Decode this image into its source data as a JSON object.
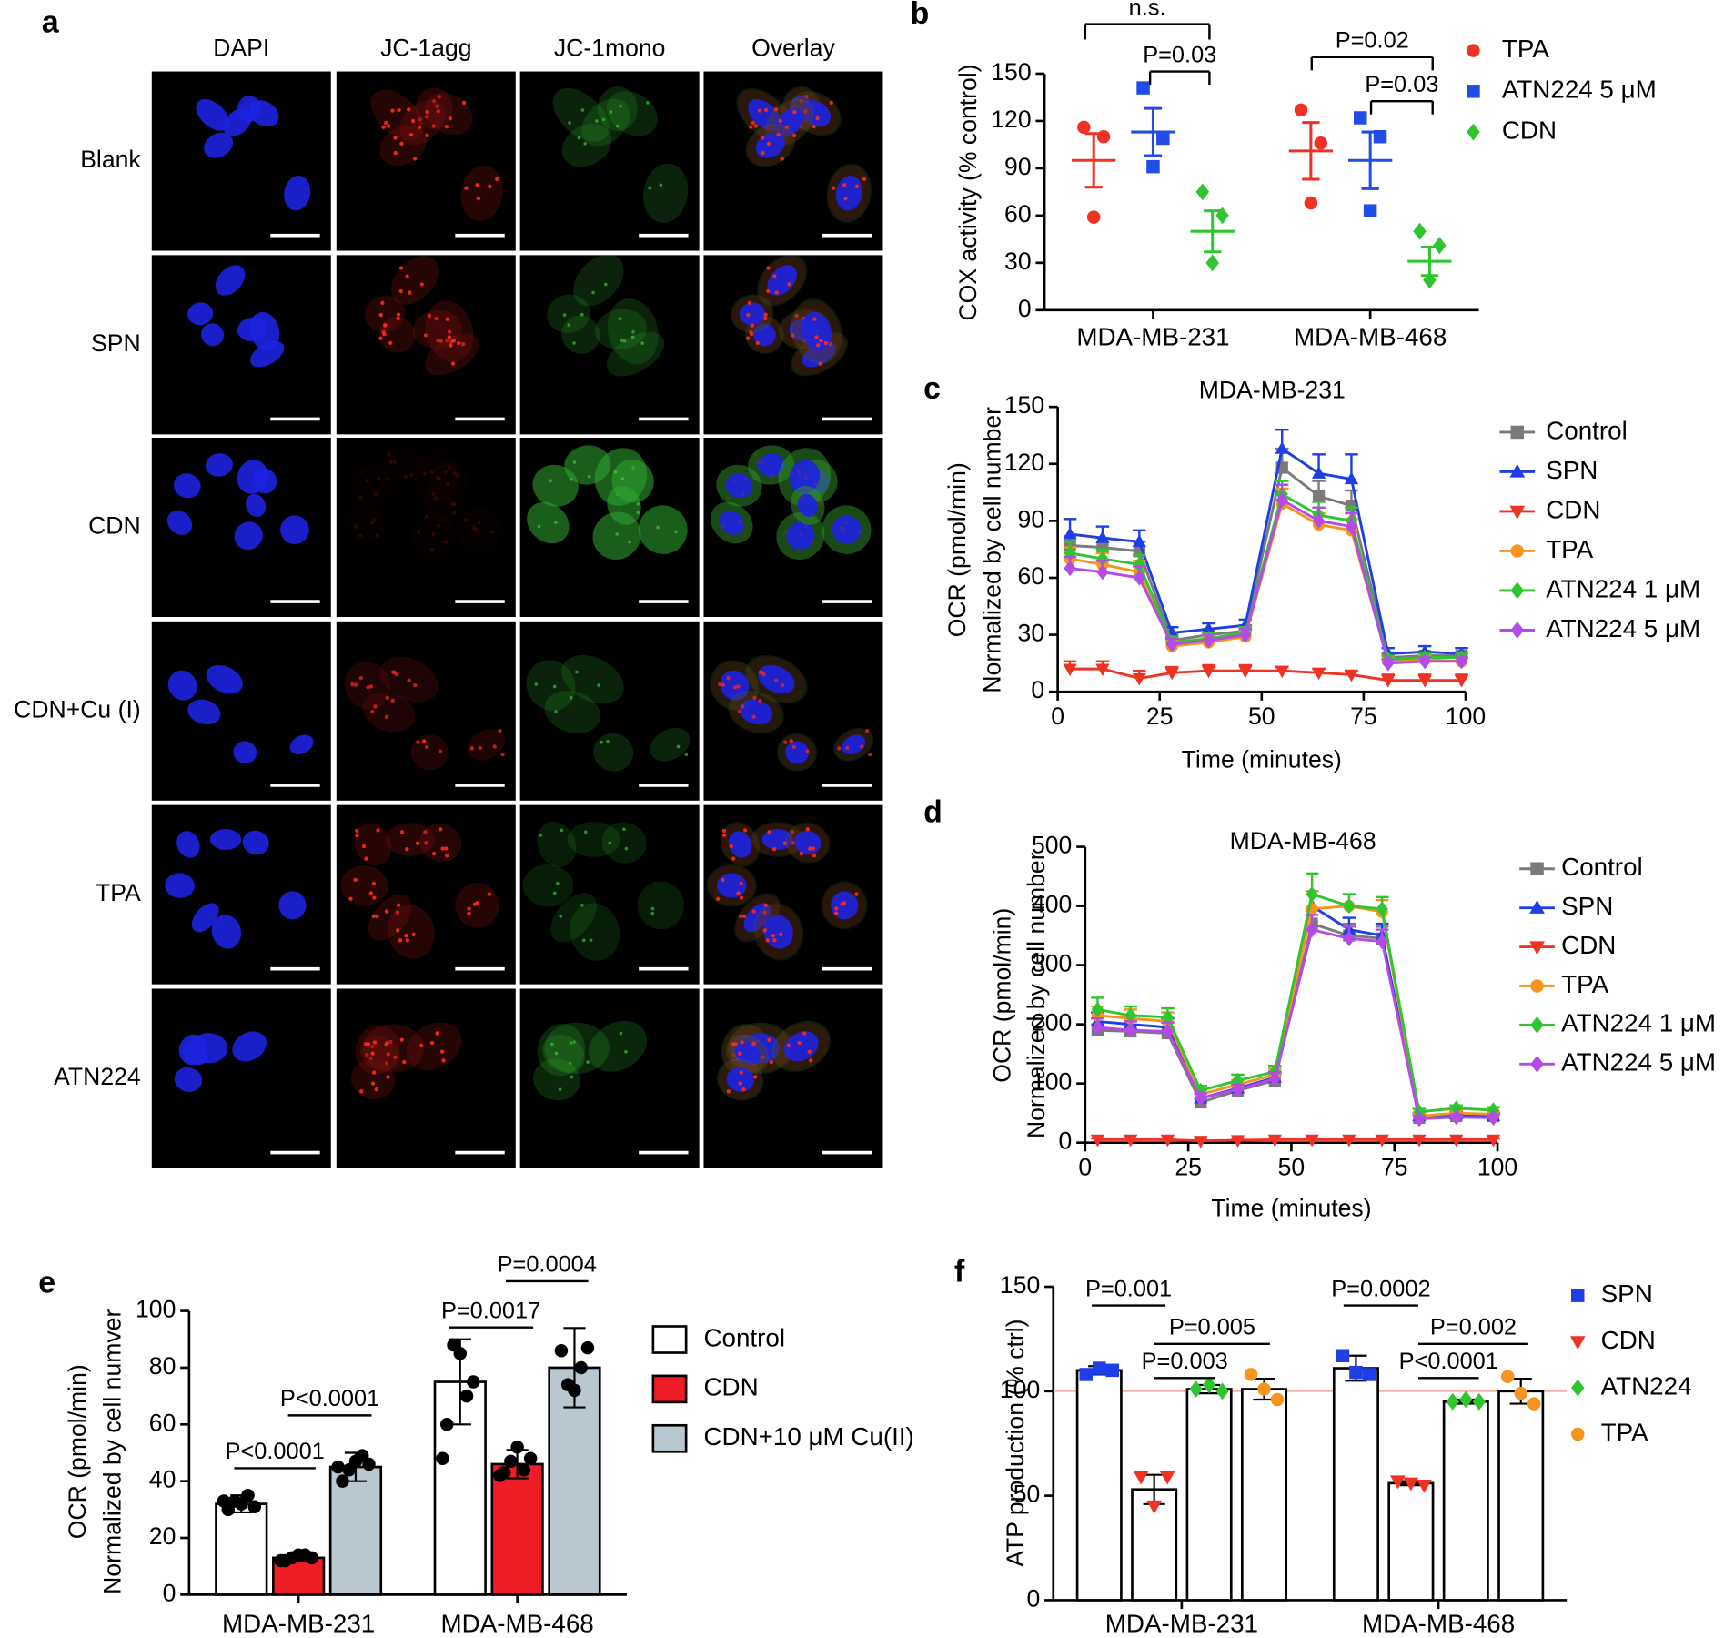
{
  "panel_a": {
    "label": "a",
    "columns": [
      "DAPI",
      "JC-1agg",
      "JC-1mono",
      "Overlay"
    ],
    "rows": [
      "Blank",
      "SPN",
      "CDN",
      "CDN+Cu (I)",
      "TPA",
      "ATN224"
    ]
  },
  "chart_data": [
    {
      "type": "dot_plot",
      "label": "b",
      "ylabel": "COX activity (% control)",
      "categories": [
        "MDA-MB-231",
        "MDA-MB-468"
      ],
      "ylim": [
        0,
        150
      ],
      "yticks": [
        0,
        30,
        60,
        90,
        120,
        150
      ],
      "series": [
        {
          "name": "TPA",
          "color": "#ee3324",
          "marker": "circle",
          "values": [
            [
              116,
              110,
              59
            ],
            [
              127,
              106,
              68
            ]
          ],
          "means": [
            95,
            101
          ],
          "errors": [
            17,
            18
          ]
        },
        {
          "name": "ATN224 5 μM",
          "color": "#1f4de6",
          "marker": "square",
          "values": [
            [
              141,
              109,
              91
            ],
            [
              122,
              110,
              63
            ]
          ],
          "means": [
            113,
            95
          ],
          "errors": [
            15,
            18
          ]
        },
        {
          "name": "CDN",
          "color": "#2fc52f",
          "marker": "diamond",
          "values": [
            [
              75,
              60,
              30
            ],
            [
              50,
              41,
              19
            ]
          ],
          "means": [
            50,
            31
          ],
          "errors": [
            13,
            9
          ]
        }
      ],
      "annotations": [
        "n.s.",
        "P=0.03",
        "P=0.02",
        "P=0.03"
      ]
    },
    {
      "type": "line",
      "label": "c",
      "title": "MDA-MB-231",
      "xlabel": "Time (minutes)",
      "ylabel": [
        "OCR (pmol/min)",
        "Normalized by cell number"
      ],
      "x": [
        3,
        11,
        20,
        28,
        37,
        46,
        55,
        64,
        72,
        81,
        90,
        99
      ],
      "xlim": [
        0,
        100
      ],
      "xticks": [
        0,
        25,
        50,
        75,
        100
      ],
      "ylim": [
        0,
        150
      ],
      "yticks": [
        0,
        30,
        60,
        90,
        120,
        150
      ],
      "series": [
        {
          "name": "Control",
          "color": "#7a7a7a",
          "marker": "square",
          "values": [
            77,
            76,
            74,
            27,
            30,
            32,
            118,
            103,
            98,
            18,
            19,
            19
          ],
          "errors": [
            5,
            5,
            5,
            3,
            3,
            3,
            10,
            8,
            8,
            2,
            2,
            2
          ]
        },
        {
          "name": "SPN",
          "color": "#1f3fe6",
          "marker": "triangle-up",
          "values": [
            83,
            81,
            79,
            31,
            33,
            35,
            128,
            115,
            112,
            20,
            21,
            20
          ],
          "errors": [
            8,
            6,
            6,
            3,
            3,
            3,
            10,
            10,
            13,
            3,
            3,
            3
          ]
        },
        {
          "name": "CDN",
          "color": "#ee3324",
          "marker": "triangle-down",
          "values": [
            12,
            12,
            7,
            10,
            11,
            11,
            11,
            10,
            9,
            6,
            6,
            6
          ],
          "errors": [
            4,
            4,
            4,
            3,
            3,
            3,
            2,
            2,
            2,
            3,
            3,
            3
          ]
        },
        {
          "name": "TPA",
          "color": "#f7941d",
          "marker": "circle",
          "values": [
            70,
            67,
            63,
            24,
            26,
            29,
            99,
            88,
            85,
            16,
            17,
            16
          ],
          "errors": [
            6,
            6,
            6,
            3,
            3,
            3,
            8,
            6,
            6,
            2,
            2,
            2
          ]
        },
        {
          "name": "ATN224 1 μM",
          "color": "#2fc52f",
          "marker": "diamond",
          "values": [
            73,
            70,
            67,
            26,
            28,
            31,
            104,
            93,
            90,
            17,
            18,
            18
          ],
          "errors": [
            6,
            5,
            5,
            3,
            3,
            3,
            7,
            7,
            7,
            2,
            2,
            2
          ]
        },
        {
          "name": "ATN224 5 μM",
          "color": "#b44be6",
          "marker": "diamond",
          "values": [
            65,
            63,
            60,
            25,
            27,
            30,
            101,
            90,
            87,
            15,
            16,
            16
          ],
          "errors": [
            6,
            6,
            6,
            3,
            3,
            3,
            8,
            7,
            7,
            2,
            2,
            2
          ]
        }
      ]
    },
    {
      "type": "line",
      "label": "d",
      "title": "MDA-MB-468",
      "xlabel": "Time (minutes)",
      "ylabel": [
        "OCR (pmol/min)",
        "Normalized by cell number"
      ],
      "x": [
        3,
        11,
        20,
        28,
        37,
        46,
        55,
        64,
        72,
        81,
        90,
        99
      ],
      "xlim": [
        0,
        100
      ],
      "xticks": [
        0,
        25,
        50,
        75,
        100
      ],
      "ylim": [
        0,
        500
      ],
      "yticks": [
        0,
        100,
        200,
        300,
        400,
        500
      ],
      "series": [
        {
          "name": "Control",
          "color": "#7a7a7a",
          "marker": "square",
          "values": [
            190,
            188,
            185,
            68,
            88,
            105,
            370,
            350,
            345,
            42,
            45,
            45
          ],
          "errors": [
            10,
            10,
            10,
            6,
            8,
            10,
            25,
            20,
            20,
            5,
            5,
            5
          ]
        },
        {
          "name": "SPN",
          "color": "#1f3fe6",
          "marker": "triangle-up",
          "values": [
            205,
            200,
            195,
            75,
            92,
            110,
            400,
            360,
            350,
            45,
            48,
            45
          ],
          "errors": [
            15,
            15,
            15,
            8,
            8,
            10,
            25,
            20,
            20,
            5,
            5,
            5
          ]
        },
        {
          "name": "CDN",
          "color": "#ee3324",
          "marker": "triangle-down",
          "values": [
            5,
            5,
            5,
            3,
            4,
            5,
            5,
            5,
            5,
            5,
            5,
            5
          ],
          "errors": [
            2,
            2,
            2,
            2,
            2,
            2,
            2,
            2,
            2,
            2,
            2,
            2
          ]
        },
        {
          "name": "TPA",
          "color": "#f7941d",
          "marker": "circle",
          "values": [
            215,
            210,
            205,
            82,
            98,
            115,
            395,
            400,
            390,
            45,
            50,
            48
          ],
          "errors": [
            15,
            15,
            15,
            8,
            8,
            10,
            30,
            20,
            20,
            5,
            5,
            5
          ]
        },
        {
          "name": "ATN224 1 μM",
          "color": "#2fc52f",
          "marker": "diamond",
          "values": [
            225,
            215,
            212,
            88,
            105,
            120,
            420,
            400,
            395,
            52,
            58,
            55
          ],
          "errors": [
            20,
            15,
            15,
            8,
            10,
            10,
            35,
            20,
            20,
            5,
            5,
            5
          ]
        },
        {
          "name": "ATN224 5 μM",
          "color": "#b44be6",
          "marker": "diamond",
          "values": [
            195,
            190,
            188,
            75,
            90,
            108,
            360,
            345,
            340,
            40,
            43,
            42
          ],
          "errors": [
            15,
            15,
            15,
            8,
            8,
            10,
            25,
            20,
            20,
            5,
            5,
            5
          ]
        }
      ]
    },
    {
      "type": "bar",
      "label": "e",
      "ylabel": [
        "OCR (pmol/min)",
        "Normalized by cell numver"
      ],
      "categories": [
        "MDA-MB-231",
        "MDA-MB-468"
      ],
      "ylim": [
        0,
        100
      ],
      "yticks": [
        0,
        20,
        40,
        60,
        80,
        100
      ],
      "point_color": "#000000",
      "series": [
        {
          "name": "Control",
          "color": "#ffffff",
          "values": [
            32,
            75
          ],
          "errors": [
            3,
            15
          ],
          "points": [
            [
              30,
              31,
              32,
              33,
              35,
              33
            ],
            [
              60,
              75,
              85,
              88,
              70,
              48
            ]
          ]
        },
        {
          "name": "CDN",
          "color": "#ee1c24",
          "values": [
            13,
            46
          ],
          "errors": [
            1,
            5
          ],
          "points": [
            [
              12,
              13,
              14,
              13,
              14,
              12
            ],
            [
              43,
              48,
              52,
              47,
              44,
              42
            ]
          ]
        },
        {
          "name": "CDN+10 μM Cu(II)",
          "color": "#b9c7d1",
          "values": [
            45,
            80
          ],
          "errors": [
            5,
            14
          ],
          "points": [
            [
              40,
              46,
              47,
              44,
              49,
              45
            ],
            [
              86,
              87,
              72,
              74,
              80
            ]
          ]
        }
      ],
      "annotations": [
        "P<0.0001",
        "P<0.0001",
        "P=0.0017",
        "P=0.0004"
      ]
    },
    {
      "type": "bar",
      "label": "f",
      "ylabel": "ATP production (% ctrl)",
      "categories": [
        "MDA-MB-231",
        "MDA-MB-468"
      ],
      "ylim": [
        0,
        150
      ],
      "yticks": [
        0,
        50,
        100,
        150
      ],
      "bar_color": "#ffffff",
      "reference_line": 100,
      "reference_color": "#f6b3a3",
      "series": [
        {
          "name": "SPN",
          "color": "#1f3fe6",
          "marker": "square",
          "values": [
            110,
            111
          ],
          "errors": [
            2,
            6
          ],
          "points": [
            [
              108,
              110,
              111
            ],
            [
              117,
              108,
              109
            ]
          ]
        },
        {
          "name": "CDN",
          "color": "#ee3324",
          "marker": "triangle-down",
          "values": [
            53,
            56
          ],
          "errors": [
            7,
            1
          ],
          "points": [
            [
              59,
              59,
              45
            ],
            [
              57,
              55,
              56
            ]
          ]
        },
        {
          "name": "ATN224",
          "color": "#2fc52f",
          "marker": "diamond",
          "values": [
            101,
            95
          ],
          "errors": [
            2,
            1
          ],
          "points": [
            [
              101,
              100,
              103
            ],
            [
              95,
              95,
              96
            ]
          ]
        },
        {
          "name": "TPA",
          "color": "#f7941d",
          "marker": "circle",
          "values": [
            101,
            100
          ],
          "errors": [
            5,
            6
          ],
          "points": [
            [
              108,
              96,
              101
            ],
            [
              107,
              94,
              99
            ]
          ]
        }
      ],
      "annotations": [
        "P=0.001",
        "P=0.005",
        "P=0.003",
        "P=0.0002",
        "P=0.002",
        "P<0.0001"
      ]
    }
  ]
}
